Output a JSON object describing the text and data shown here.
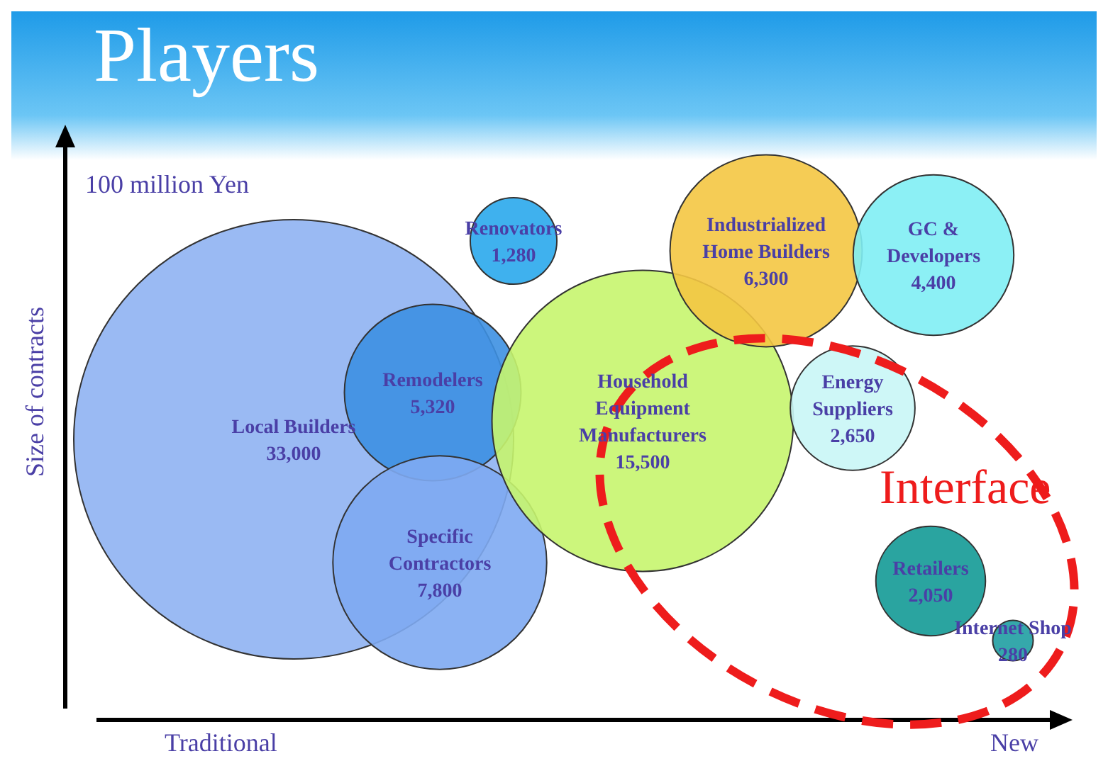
{
  "chart_data": {
    "type": "other",
    "title": "Players",
    "ylabel": "Size of contracts",
    "value_labels": [
      "33,000",
      "5,320",
      "7,800",
      "1,280",
      "15,500",
      "6,300",
      "4,400",
      "2,650",
      "2,050",
      "280"
    ],
    "annotations": [
      "100 million Yen",
      "Interface",
      "Traditional",
      "New"
    ],
    "categories": [
      "Local Builders",
      "Remodelers",
      "Specific Contractors",
      "Renovators",
      "Household Equipment Manufacturers",
      "Industrialized Home Builders",
      "GC & Developers",
      "Energy Suppliers",
      "Retailers",
      "Internet Shop"
    ],
    "values": [
      33000,
      5320,
      7800,
      1280,
      15500,
      6300,
      4400,
      2650,
      2050,
      280
    ],
    "colors": [
      "#8fb3f2",
      "#3d90e2",
      "#7eaaf2",
      "#2aa8ec",
      "#c6f56e",
      "#f4c743",
      "#80eef4",
      "#c9f6f6",
      "#139a96",
      "#1f9ea2"
    ]
  }
}
